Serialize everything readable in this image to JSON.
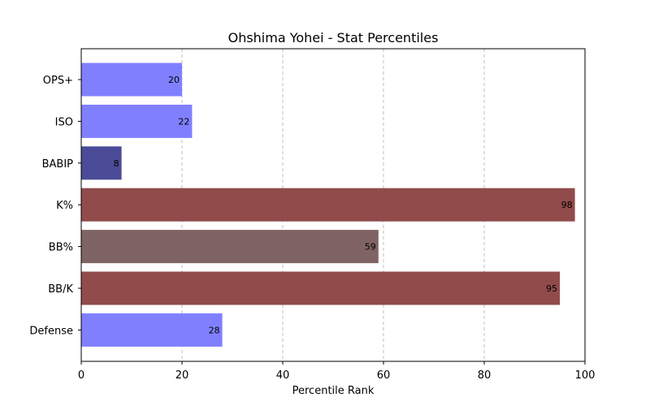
{
  "chart_data": {
    "type": "bar",
    "orientation": "horizontal",
    "title": "Ohshima Yohei - Stat Percentiles",
    "xlabel": "Percentile Rank",
    "ylabel": "",
    "xlim": [
      0,
      100
    ],
    "xticks": [
      0,
      20,
      40,
      60,
      80,
      100
    ],
    "grid": "x",
    "categories": [
      "OPS+",
      "ISO",
      "BABIP",
      "K%",
      "BB%",
      "BB/K",
      "Defense"
    ],
    "values": [
      20,
      22,
      8,
      98,
      59,
      95,
      28
    ],
    "colors": [
      "#8080ff",
      "#8080ff",
      "#4b4b97",
      "#914b4b",
      "#806464",
      "#914b4b",
      "#8080ff"
    ]
  }
}
